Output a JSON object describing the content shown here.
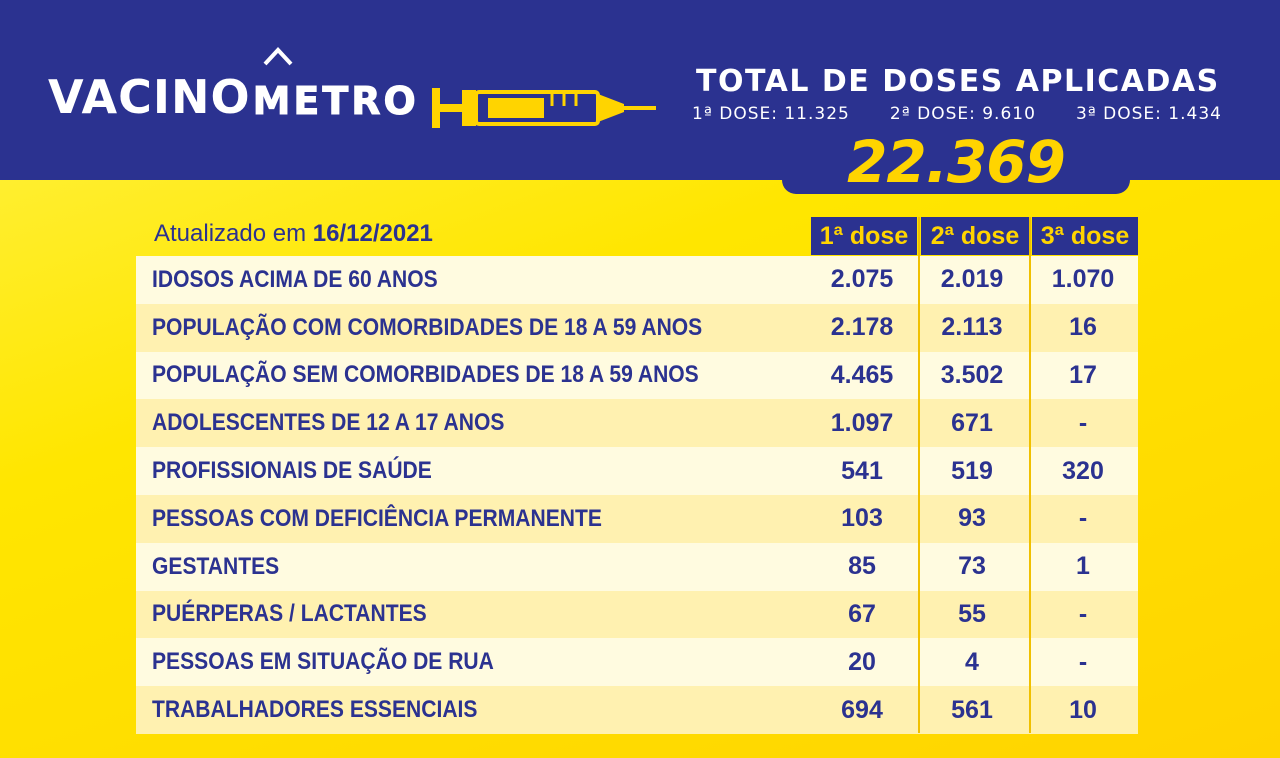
{
  "brand": {
    "part1": "VACINO",
    "part2": "METRO"
  },
  "totals": {
    "title": "TOTAL DE DOSES APLICADAS",
    "dose1": "1ª DOSE: 11.325",
    "dose2": "2ª DOSE: 9.610",
    "dose3": "3ª DOSE:  1.434",
    "total": "22.369"
  },
  "updated": {
    "prefix": "Atualizado em",
    "date": "16/12/2021"
  },
  "columns": [
    "1ª dose",
    "2ª dose",
    "3ª dose"
  ],
  "rows": [
    {
      "label": "IDOSOS ACIMA DE 60 ANOS",
      "d1": "2.075",
      "d2": "2.019",
      "d3": "1.070"
    },
    {
      "label": "POPULAÇÃO COM COMORBIDADES DE 18 A 59 ANOS",
      "d1": "2.178",
      "d2": "2.113",
      "d3": "16"
    },
    {
      "label": "POPULAÇÃO SEM COMORBIDADES DE 18 A 59 ANOS",
      "d1": "4.465",
      "d2": "3.502",
      "d3": "17"
    },
    {
      "label": "ADOLESCENTES DE 12 A 17 ANOS",
      "d1": "1.097",
      "d2": "671",
      "d3": "-"
    },
    {
      "label": "PROFISSIONAIS DE SAÚDE",
      "d1": "541",
      "d2": "519",
      "d3": "320"
    },
    {
      "label": "PESSOAS COM DEFICIÊNCIA PERMANENTE",
      "d1": "103",
      "d2": "93",
      "d3": "-"
    },
    {
      "label": "GESTANTES",
      "d1": "85",
      "d2": "73",
      "d3": "1"
    },
    {
      "label": "PUÉRPERAS / LACTANTES",
      "d1": "67",
      "d2": "55",
      "d3": "-"
    },
    {
      "label": "PESSOAS EM SITUAÇÃO DE RUA",
      "d1": "20",
      "d2": "4",
      "d3": "-"
    },
    {
      "label": "TRABALHADORES ESSENCIAIS",
      "d1": "694",
      "d2": "561",
      "d3": "10"
    }
  ],
  "colors": {
    "navy": "#2b3290",
    "yellow": "#ffd400",
    "white": "#ffffff"
  },
  "icons": [
    "house-icon",
    "syringe-icon"
  ]
}
